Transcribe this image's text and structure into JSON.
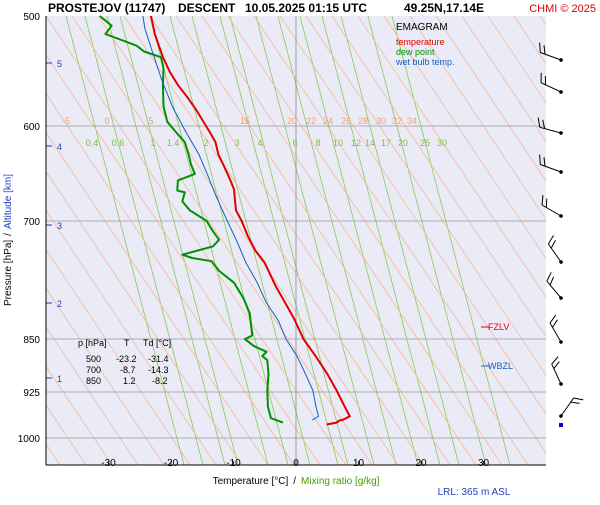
{
  "header": {
    "station": "PROSTEJOV (11747)",
    "mode": "DESCENT",
    "datetime": "10.05.2025 01:15 UTC",
    "coords": "49.25N,17.14E",
    "credit": "CHMI © 2025"
  },
  "legend": {
    "title": "EMAGRAM",
    "items": [
      {
        "label": "temperature",
        "color": "#e00000"
      },
      {
        "label": "dew point",
        "color": "#009000"
      },
      {
        "label": "wet bulb temp.",
        "color": "#1060c0"
      }
    ]
  },
  "axes": {
    "ylabel_left": "Pressure [hPa]",
    "ylabel_sep": "/",
    "ylabel_right": "Altitude [km]",
    "xlabel_left": "Temperature [°C]",
    "xlabel_sep": "/",
    "xlabel_right": "Mixing ratio [g/kg]",
    "lrl": "LRL: 365 m ASL"
  },
  "table": {
    "headers": [
      "p [hPa]",
      "T",
      "Td [°C]"
    ],
    "rows": [
      [
        "500",
        "-23.2",
        "-31.4"
      ],
      [
        "700",
        "-8.7",
        "-14.3"
      ],
      [
        "850",
        "1.2",
        "-8.2"
      ]
    ]
  },
  "markers": {
    "fzlv": "FZLV",
    "wbzl": "WBZL"
  },
  "chart_data": {
    "type": "line",
    "title": "PROSTEJOV (11747)   DESCENT   10.05.2025 01:15 UTC   49.25N,17.14E",
    "xlabel": "Temperature [°C]",
    "ylabel": "Pressure [hPa]",
    "xlim": [
      -40,
      40
    ],
    "ylim": [
      1000,
      500
    ],
    "yscale": "log",
    "x_ticks": [
      -30,
      -20,
      -10,
      0,
      10,
      20,
      30
    ],
    "p_ticks": [
      500,
      600,
      700,
      850,
      925,
      1000
    ],
    "alt_ticks": [
      1,
      2,
      3,
      4,
      5
    ],
    "isotherm_labels": [
      -5,
      0,
      5,
      15,
      20,
      22,
      24,
      26,
      28,
      30,
      32,
      34
    ],
    "mixing_ratio_labels": [
      "0.4",
      "0.6",
      "1",
      "1.4",
      "2",
      "3",
      "4",
      "6",
      "8",
      "10",
      "12",
      "14",
      "17",
      "20",
      "25",
      "30"
    ],
    "series": [
      {
        "name": "temperature",
        "color": "#e00000",
        "points": [
          [
            -23.2,
            500
          ],
          [
            -22.6,
            515
          ],
          [
            -21.3,
            535
          ],
          [
            -20.2,
            548
          ],
          [
            -18.9,
            560
          ],
          [
            -17.3,
            572
          ],
          [
            -15.8,
            585
          ],
          [
            -14.8,
            595
          ],
          [
            -13.8,
            605
          ],
          [
            -12.9,
            615
          ],
          [
            -12.4,
            628
          ],
          [
            -11.5,
            640
          ],
          [
            -10.5,
            655
          ],
          [
            -9.9,
            665
          ],
          [
            -9.8,
            675
          ],
          [
            -9.6,
            688
          ],
          [
            -8.7,
            700
          ],
          [
            -7.7,
            718
          ],
          [
            -6.5,
            735
          ],
          [
            -5.0,
            750
          ],
          [
            -4.1,
            765
          ],
          [
            -3.2,
            780
          ],
          [
            -1.8,
            800
          ],
          [
            -0.3,
            822
          ],
          [
            1.2,
            850
          ],
          [
            3.2,
            875
          ],
          [
            5.0,
            900
          ],
          [
            6.5,
            925
          ],
          [
            7.8,
            950
          ],
          [
            8.6,
            965
          ],
          [
            7.6,
            970
          ],
          [
            6.9,
            972
          ],
          [
            6.5,
            975
          ],
          [
            4.9,
            978
          ]
        ]
      },
      {
        "name": "dew point",
        "color": "#009000",
        "points": [
          [
            -31.4,
            500
          ],
          [
            -29.5,
            508
          ],
          [
            -30.5,
            515
          ],
          [
            -25.5,
            525
          ],
          [
            -24.3,
            530
          ],
          [
            -21.6,
            535
          ],
          [
            -21.2,
            545
          ],
          [
            -21.3,
            560
          ],
          [
            -21.2,
            580
          ],
          [
            -20.6,
            595
          ],
          [
            -19.2,
            605
          ],
          [
            -17.8,
            615
          ],
          [
            -17.3,
            625
          ],
          [
            -16.8,
            638
          ],
          [
            -16.2,
            648
          ],
          [
            -18.9,
            655
          ],
          [
            -19.0,
            666
          ],
          [
            -17.8,
            668
          ],
          [
            -18.2,
            678
          ],
          [
            -17.0,
            688
          ],
          [
            -14.3,
            700
          ],
          [
            -13.3,
            712
          ],
          [
            -12.3,
            722
          ],
          [
            -13.3,
            730
          ],
          [
            -18.2,
            740
          ],
          [
            -16.6,
            744
          ],
          [
            -13.5,
            748
          ],
          [
            -12.3,
            760
          ],
          [
            -9.9,
            775
          ],
          [
            -8.4,
            795
          ],
          [
            -7.4,
            815
          ],
          [
            -7.2,
            830
          ],
          [
            -7.0,
            845
          ],
          [
            -8.2,
            850
          ],
          [
            -6.7,
            860
          ],
          [
            -4.7,
            868
          ],
          [
            -5.4,
            874
          ],
          [
            -4.6,
            880
          ],
          [
            -4.4,
            900
          ],
          [
            -4.6,
            925
          ],
          [
            -4.5,
            950
          ],
          [
            -4.0,
            968
          ],
          [
            -2.1,
            975
          ]
        ]
      },
      {
        "name": "wet bulb temp.",
        "color": "#1060c0",
        "points": [
          [
            -24.5,
            500
          ],
          [
            -24.2,
            510
          ],
          [
            -23.0,
            530
          ],
          [
            -21.5,
            555
          ],
          [
            -19.8,
            580
          ],
          [
            -17.8,
            603
          ],
          [
            -15.5,
            628
          ],
          [
            -14.1,
            650
          ],
          [
            -12.8,
            672
          ],
          [
            -11.0,
            700
          ],
          [
            -9.4,
            725
          ],
          [
            -8.0,
            750
          ],
          [
            -6.2,
            775
          ],
          [
            -4.8,
            800
          ],
          [
            -2.8,
            825
          ],
          [
            -1.6,
            850
          ],
          [
            0.2,
            875
          ],
          [
            1.5,
            900
          ],
          [
            2.7,
            925
          ],
          [
            3.2,
            950
          ],
          [
            3.6,
            965
          ],
          [
            2.6,
            971
          ]
        ]
      }
    ]
  }
}
